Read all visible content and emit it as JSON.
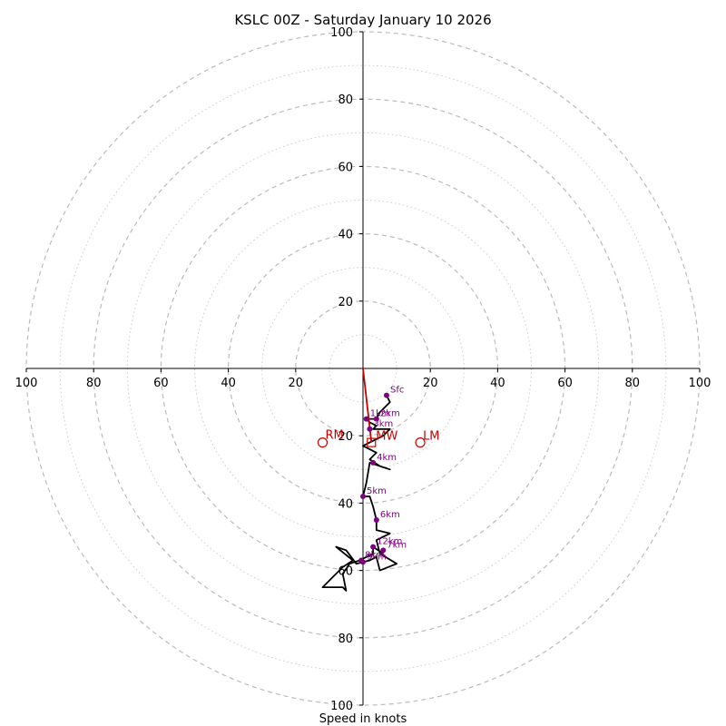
{
  "chart_data": {
    "type": "hodograph",
    "title": "KSLC 00Z - Saturday January 10 2026",
    "xlabel": "Speed in knots",
    "units": "knots",
    "axis_range": [
      -100,
      100
    ],
    "ring_major": [
      20,
      40,
      60,
      80,
      100
    ],
    "ring_minor": [
      10,
      30,
      50,
      70,
      90
    ],
    "x_ticks": [
      "100",
      "80",
      "60",
      "40",
      "20",
      "20",
      "40",
      "60",
      "80",
      "100"
    ],
    "y_ticks": [
      "100",
      "80",
      "60",
      "40",
      "20",
      "20",
      "40",
      "60",
      "80",
      "100"
    ],
    "x_tick_values": [
      -100,
      -80,
      -60,
      -40,
      -20,
      20,
      40,
      60,
      80,
      100
    ],
    "y_tick_values": [
      100,
      80,
      60,
      40,
      20,
      -20,
      -40,
      -60,
      -80,
      -100
    ],
    "profile": [
      [
        7,
        -8
      ],
      [
        8,
        -10
      ],
      [
        5,
        -13
      ],
      [
        4,
        -15
      ],
      [
        1,
        -15
      ],
      [
        2,
        -16
      ],
      [
        4,
        -17
      ],
      [
        3,
        -18
      ],
      [
        5,
        -18
      ],
      [
        8,
        -18
      ],
      [
        6,
        -20
      ],
      [
        2,
        -22
      ],
      [
        0,
        -23
      ],
      [
        4,
        -25
      ],
      [
        2,
        -27
      ],
      [
        5,
        -29
      ],
      [
        8,
        -30
      ],
      [
        2,
        -28
      ],
      [
        1,
        -34
      ],
      [
        0,
        -38
      ],
      [
        2,
        -38
      ],
      [
        3,
        -41
      ],
      [
        4,
        -45
      ],
      [
        4,
        -48
      ],
      [
        8,
        -49
      ],
      [
        4,
        -51
      ],
      [
        5,
        -55
      ],
      [
        10,
        -58
      ],
      [
        5,
        -60
      ],
      [
        4,
        -56
      ],
      [
        2,
        -57
      ],
      [
        -2,
        -58
      ],
      [
        -5,
        -54
      ],
      [
        -8,
        -53
      ],
      [
        -3,
        -57
      ],
      [
        -6,
        -59
      ],
      [
        -10,
        -63
      ],
      [
        -12,
        -65
      ],
      [
        -6,
        -65
      ],
      [
        -5,
        -66
      ],
      [
        -6,
        -61
      ],
      [
        -4,
        -58
      ],
      [
        -1,
        -57
      ],
      [
        1,
        -56
      ],
      [
        3,
        -55
      ],
      [
        3,
        -53
      ],
      [
        6,
        -55
      ]
    ],
    "height_markers": [
      {
        "label": "Sfc",
        "u": 7,
        "v": -8
      },
      {
        "label": "1km",
        "u": 1,
        "v": -15
      },
      {
        "label": "2km",
        "u": 4,
        "v": -15
      },
      {
        "label": "3km",
        "u": 2,
        "v": -18
      },
      {
        "label": "4km",
        "u": 3,
        "v": -28
      },
      {
        "label": "5km",
        "u": 0,
        "v": -38
      },
      {
        "label": "6km",
        "u": 4,
        "v": -45
      },
      {
        "label": "7km",
        "u": 6,
        "v": -54
      },
      {
        "label": "8km",
        "u": -0.5,
        "v": -57
      },
      {
        "label": "9km",
        "u": 0,
        "v": -57.5
      },
      {
        "label": "12km",
        "u": 3,
        "v": -53
      }
    ],
    "storm_motion": {
      "RM": {
        "label": "RM",
        "u": -12,
        "v": -22
      },
      "LM": {
        "label": "LM",
        "u": 17,
        "v": -22
      },
      "MW": {
        "label": "MW",
        "u": 2.5,
        "v": -22
      }
    },
    "mean_wind_vector": {
      "from": [
        0,
        0
      ],
      "to": [
        2.5,
        -22
      ]
    },
    "colors": {
      "profile": "#000000",
      "markers": "#800080",
      "storm": "#cc0000",
      "grid_major": "#bbbbbb",
      "grid_minor": "#cccccc",
      "axes": "#000000"
    }
  }
}
